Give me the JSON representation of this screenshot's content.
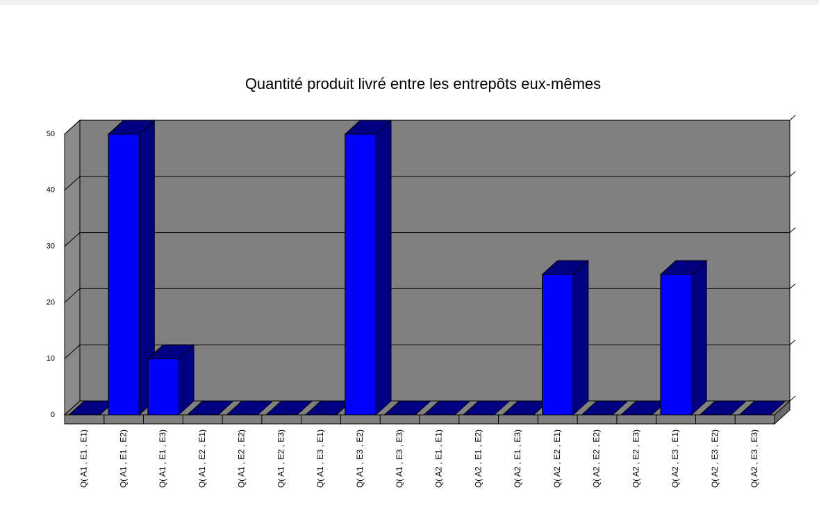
{
  "chart_data": {
    "type": "bar3d",
    "title": "Quantité produit livré entre les entrepôts eux-mêmes",
    "categories": [
      "Q( A1 , E1 , E1)",
      "Q( A1 , E1 , E2)",
      "Q( A1 , E1 , E3)",
      "Q( A1 , E2 , E1)",
      "Q( A1 , E2 , E2)",
      "Q( A1 , E2 , E3)",
      "Q( A1 , E3 , E1)",
      "Q( A1 , E3 , E2)",
      "Q( A1 , E3 , E3)",
      "Q( A2 , E1 , E1)",
      "Q( A2 , E1 , E2)",
      "Q( A2 , E1 , E3)",
      "Q( A2 , E2 , E1)",
      "Q( A2 , E2 , E2)",
      "Q( A2 , E2 , E3)",
      "Q( A2 , E3 , E1)",
      "Q( A2 , E3 , E2)",
      "Q( A2 , E3 , E3)"
    ],
    "values": [
      0,
      50,
      10,
      0,
      0,
      0,
      0,
      50,
      0,
      0,
      0,
      0,
      25,
      0,
      0,
      25,
      0,
      0
    ],
    "color": "#0000ff",
    "shade_color": "#000080",
    "ylim": [
      0,
      50
    ],
    "yticks": [
      0,
      10,
      20,
      30,
      40,
      50
    ],
    "grid": true
  }
}
